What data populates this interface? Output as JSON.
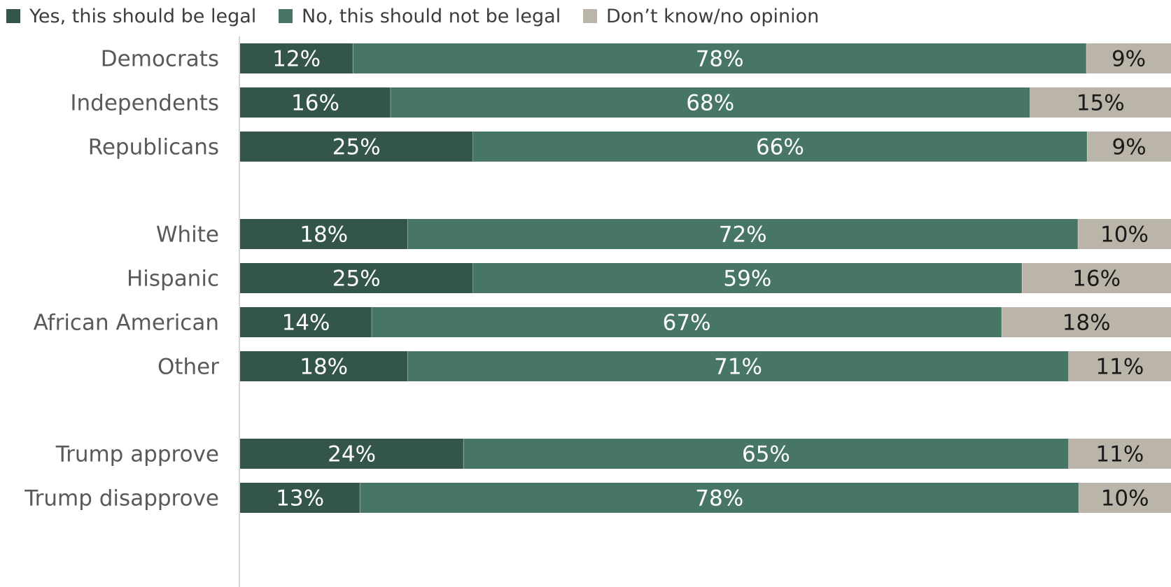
{
  "chart_data": {
    "type": "bar",
    "orientation": "horizontal",
    "stacked": true,
    "normalized": true,
    "title": "",
    "xlabel": "",
    "ylabel": "",
    "grid": false,
    "legend_position": "top",
    "groups": [
      [
        "Democrats",
        "Independents",
        "Republicans"
      ],
      [
        "White",
        "Hispanic",
        "African American",
        "Other"
      ],
      [
        "Trump approve",
        "Trump disapprove"
      ]
    ],
    "categories": [
      "Democrats",
      "Independents",
      "Republicans",
      "White",
      "Hispanic",
      "African American",
      "Other",
      "Trump approve",
      "Trump disapprove"
    ],
    "series": [
      {
        "name": "Yes, this should be legal",
        "color": "#345549",
        "label_color": "#ffffff",
        "values": [
          12,
          16,
          25,
          18,
          25,
          14,
          18,
          24,
          13
        ],
        "labels": [
          "12%",
          "16%",
          "25%",
          "18%",
          "25%",
          "14%",
          "18%",
          "24%",
          "13%"
        ]
      },
      {
        "name": "No, this should not be legal",
        "color": "#487666",
        "label_color": "#ffffff",
        "values": [
          78,
          68,
          66,
          72,
          59,
          67,
          71,
          65,
          78
        ],
        "labels": [
          "78%",
          "68%",
          "66%",
          "72%",
          "59%",
          "67%",
          "71%",
          "65%",
          "78%"
        ]
      },
      {
        "name": "Don’t know/no opinion",
        "color": "#bab4a9",
        "label_color": "#1a1a1a",
        "values": [
          9,
          15,
          9,
          10,
          16,
          18,
          11,
          11,
          10
        ],
        "labels": [
          "9%",
          "15%",
          "9%",
          "10%",
          "16%",
          "18%",
          "11%",
          "11%",
          "10%"
        ]
      }
    ]
  }
}
